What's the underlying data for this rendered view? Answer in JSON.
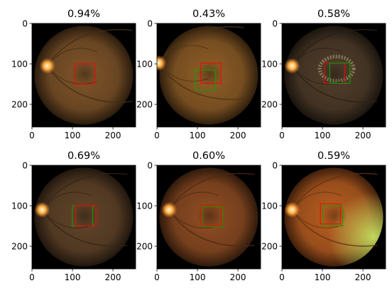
{
  "chart_data": [
    {
      "type": "image",
      "title": "0.94%",
      "xlim": [
        0,
        256
      ],
      "ylim": [
        256,
        0
      ],
      "xticks": [
        0,
        100,
        200
      ],
      "yticks": [
        0,
        100,
        200
      ],
      "fundus": {
        "tint": "#7a5128",
        "disc_side": "left",
        "disc_x": 38,
        "disc_y": 105,
        "edge_glow": null,
        "lesion": false
      },
      "boxes": [
        {
          "color": "#ff0000",
          "x0": 105,
          "y0": 100,
          "x1": 155,
          "y1": 150
        }
      ]
    },
    {
      "type": "image",
      "title": "0.43%",
      "xlim": [
        0,
        256
      ],
      "ylim": [
        256,
        0
      ],
      "xticks": [
        0,
        100,
        200
      ],
      "yticks": [
        0,
        100,
        200
      ],
      "fundus": {
        "tint": "#8a5a26",
        "disc_side": "left",
        "disc_x": 4,
        "disc_y": 98,
        "edge_glow": null,
        "lesion": false
      },
      "boxes": [
        {
          "color": "#00aa00",
          "x0": 95,
          "y0": 115,
          "x1": 145,
          "y1": 165
        },
        {
          "color": "#ff0000",
          "x0": 108,
          "y0": 98,
          "x1": 158,
          "y1": 148
        }
      ]
    },
    {
      "type": "image",
      "title": "0.58%",
      "xlim": [
        0,
        256
      ],
      "ylim": [
        256,
        0
      ],
      "xticks": [
        0,
        100,
        200
      ],
      "yticks": [
        0,
        100,
        200
      ],
      "fundus": {
        "tint": "#4e3b29",
        "disc_side": "left",
        "disc_x": 25,
        "disc_y": 105,
        "edge_glow": null,
        "lesion": true
      },
      "boxes": [
        {
          "color": "#ff0000",
          "x0": 105,
          "y0": 98,
          "x1": 155,
          "y1": 148
        },
        {
          "color": "#00aa00",
          "x0": 118,
          "y0": 98,
          "x1": 168,
          "y1": 148
        }
      ]
    },
    {
      "type": "image",
      "title": "0.69%",
      "xlim": [
        0,
        256
      ],
      "ylim": [
        256,
        0
      ],
      "xticks": [
        0,
        100,
        200
      ],
      "yticks": [
        0,
        100,
        200
      ],
      "fundus": {
        "tint": "#5e4228",
        "disc_side": "left",
        "disc_x": 25,
        "disc_y": 110,
        "edge_glow": null,
        "lesion": false
      },
      "boxes": [
        {
          "color": "#00aa00",
          "x0": 100,
          "y0": 100,
          "x1": 150,
          "y1": 150
        },
        {
          "color": "#ff0000",
          "x0": 108,
          "y0": 100,
          "x1": 158,
          "y1": 150
        }
      ]
    },
    {
      "type": "image",
      "title": "0.60%",
      "xlim": [
        0,
        256
      ],
      "ylim": [
        256,
        0
      ],
      "xticks": [
        0,
        100,
        200
      ],
      "yticks": [
        0,
        100,
        200
      ],
      "fundus": {
        "tint": "#8a4a22",
        "disc_side": "left",
        "disc_x": 30,
        "disc_y": 110,
        "edge_glow": null,
        "lesion": false
      },
      "boxes": [
        {
          "color": "#ff0000",
          "x0": 110,
          "y0": 100,
          "x1": 160,
          "y1": 150
        },
        {
          "color": "#00aa00",
          "x0": 112,
          "y0": 102,
          "x1": 162,
          "y1": 152
        }
      ]
    },
    {
      "type": "image",
      "title": "0.59%",
      "xlim": [
        0,
        256
      ],
      "ylim": [
        256,
        0
      ],
      "xticks": [
        0,
        100,
        200
      ],
      "yticks": [
        0,
        100,
        200
      ],
      "fundus": {
        "tint": "#b25a20",
        "disc_side": "left",
        "disc_x": 25,
        "disc_y": 110,
        "edge_glow": "#c8e060",
        "lesion": false
      },
      "boxes": [
        {
          "color": "#ff0000",
          "x0": 95,
          "y0": 95,
          "x1": 145,
          "y1": 145
        },
        {
          "color": "#00aa00",
          "x0": 100,
          "y0": 100,
          "x1": 150,
          "y1": 150
        }
      ]
    }
  ]
}
